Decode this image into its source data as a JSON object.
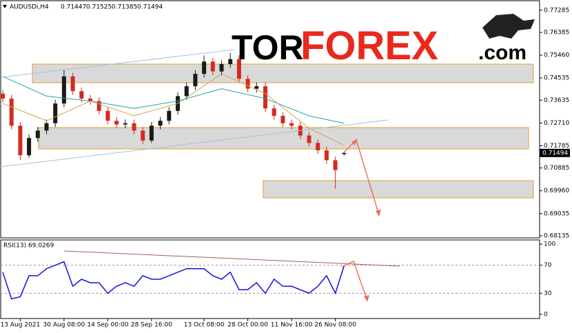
{
  "chart_data": {
    "type": "candlestick",
    "symbol": "AUDUSDi,H4",
    "categories": [
      null,
      null,
      "13 Aug 2021",
      null,
      null,
      null,
      null,
      "30 Aug 08:00",
      null,
      null,
      null,
      null,
      "14 Sep 00:00",
      null,
      null,
      null,
      null,
      "28 Sep 16:00",
      null,
      null,
      null,
      null,
      null,
      "13 Oct 08:00",
      null,
      null,
      null,
      null,
      "28 Oct 00:00",
      null,
      null,
      null,
      null,
      "11 Nov 16:00",
      null,
      null,
      null,
      null,
      "26 Nov 08:00",
      null
    ],
    "open": [
      0.739,
      0.737,
      0.726,
      0.714,
      0.721,
      0.724,
      0.727,
      0.735,
      0.746,
      0.74,
      0.737,
      0.736,
      0.732,
      0.728,
      0.7265,
      0.727,
      0.724,
      0.72,
      0.726,
      0.728,
      0.732,
      0.738,
      0.742,
      0.747,
      0.752,
      0.748,
      0.751,
      0.753,
      0.745,
      0.741,
      0.742,
      0.733,
      0.73,
      0.727,
      0.726,
      0.722,
      0.719,
      0.716,
      0.712,
      0.71447
    ],
    "high": [
      0.7405,
      0.7385,
      0.7275,
      0.7225,
      0.7255,
      0.7285,
      0.7365,
      0.7485,
      0.7475,
      0.7415,
      0.7385,
      0.7375,
      0.7335,
      0.7295,
      0.7285,
      0.7285,
      0.7255,
      0.7275,
      0.7295,
      0.7335,
      0.7395,
      0.7435,
      0.7485,
      0.7545,
      0.7535,
      0.7525,
      0.7555,
      0.7545,
      0.7465,
      0.7435,
      0.7435,
      0.7345,
      0.7315,
      0.7285,
      0.7275,
      0.7235,
      0.7205,
      0.7175,
      0.7135,
      0.71525
    ],
    "low": [
      0.7355,
      0.7245,
      0.712,
      0.713,
      0.7195,
      0.7225,
      0.7255,
      0.7335,
      0.7385,
      0.7355,
      0.7345,
      0.7305,
      0.7265,
      0.725,
      0.725,
      0.7225,
      0.7185,
      0.719,
      0.7245,
      0.7265,
      0.7305,
      0.7365,
      0.7405,
      0.7455,
      0.7465,
      0.7465,
      0.7495,
      0.7435,
      0.7395,
      0.7395,
      0.7315,
      0.7285,
      0.7255,
      0.7245,
      0.7205,
      0.7175,
      0.7145,
      0.7105,
      0.7005,
      0.71385
    ],
    "close": [
      0.737,
      0.726,
      0.714,
      0.721,
      0.724,
      0.727,
      0.735,
      0.746,
      0.74,
      0.737,
      0.736,
      0.732,
      0.728,
      0.7265,
      0.727,
      0.724,
      0.72,
      0.726,
      0.728,
      0.732,
      0.738,
      0.742,
      0.747,
      0.752,
      0.748,
      0.751,
      0.753,
      0.745,
      0.741,
      0.742,
      0.733,
      0.73,
      0.727,
      0.726,
      0.722,
      0.719,
      0.716,
      0.712,
      0.708,
      0.71494
    ],
    "up_color": "#1a1a1a",
    "down_color": "#d42a1f",
    "moving_averages": [
      {
        "color": "#1fa3a8",
        "x": [
          0,
          5,
          10,
          15,
          20,
          25,
          30,
          35,
          39
        ],
        "values": [
          0.746,
          0.738,
          0.736,
          0.733,
          0.736,
          0.741,
          0.737,
          0.73,
          0.727
        ]
      },
      {
        "color": "#d6a449",
        "x": [
          0,
          5,
          10,
          15,
          20,
          25,
          30,
          35,
          39
        ],
        "values": [
          0.735,
          0.728,
          0.736,
          0.73,
          0.735,
          0.747,
          0.739,
          0.725,
          0.718
        ]
      }
    ],
    "ylim": [
      0.6805,
      0.7767
    ],
    "yticks": [
      0.77285,
      0.76385,
      {
        "value": 0.7546,
        "label": "0.75460"
      },
      0.74535,
      0.73635,
      {
        "value": 0.7271,
        "label": "0.72710"
      },
      0.71785,
      0.70885,
      {
        "value": 0.6996,
        "label": "0.69960"
      },
      0.69035,
      0.68135
    ],
    "rsi": {
      "title": "RSI(13) 69.0269",
      "color": "#1010e0",
      "values": [
        60,
        22,
        25,
        55,
        55,
        65,
        70,
        75,
        40,
        50,
        45,
        45,
        30,
        40,
        45,
        40,
        55,
        50,
        50,
        55,
        60,
        65,
        65,
        65,
        55,
        50,
        60,
        35,
        35,
        45,
        30,
        50,
        40,
        40,
        35,
        30,
        40,
        55,
        30,
        69.0269
      ],
      "ylim": [
        -6,
        106
      ],
      "yticks": [
        100,
        70,
        30,
        0
      ],
      "levels": [
        70,
        30
      ]
    }
  },
  "logo": {
    "tor": "TOR",
    "forex": "FOREX",
    "com": ".com"
  }
}
